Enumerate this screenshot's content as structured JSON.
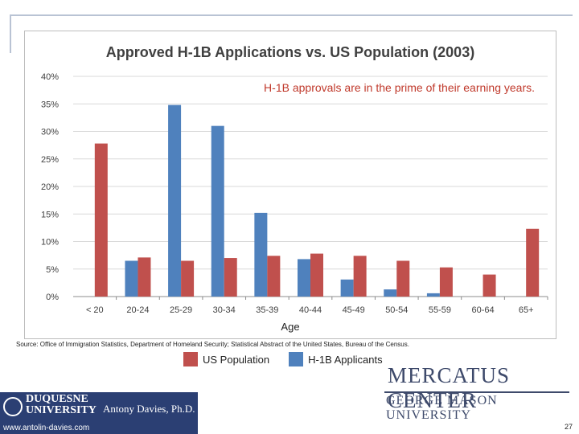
{
  "chart_data": {
    "type": "bar",
    "title": "Approved H-1B Applications vs. US Population  (2003)",
    "xlabel": "Age",
    "ylabel": "",
    "ylim": [
      0,
      40
    ],
    "ytick_labels": [
      "0%",
      "5%",
      "10%",
      "15%",
      "20%",
      "25%",
      "30%",
      "35%",
      "40%"
    ],
    "ytick_values": [
      0,
      5,
      10,
      15,
      20,
      25,
      30,
      35,
      40
    ],
    "categories": [
      "< 20",
      "20-24",
      "25-29",
      "30-34",
      "35-39",
      "40-44",
      "45-49",
      "50-54",
      "55-59",
      "60-64",
      "65+"
    ],
    "series": [
      {
        "name": "H-1B Applicants",
        "color": "#4f81bd",
        "values": [
          0,
          6.5,
          34.8,
          31,
          15.2,
          6.8,
          3.1,
          1.3,
          0.6,
          0,
          0
        ]
      },
      {
        "name": "US Population",
        "color": "#c0504d",
        "values": [
          27.8,
          7.1,
          6.5,
          7,
          7.4,
          7.8,
          7.4,
          6.5,
          5.3,
          4,
          12.3
        ]
      }
    ],
    "annotation": "H-1B approvals are in the prime of their earning years.",
    "annotation_color": "#c0392b",
    "grid": true,
    "legend_position": "bottom"
  },
  "source": "Source:  Office of Immigration Statistics, Department of Homeland Security; Statistical Abstract of the United States, Bureau of the Census.",
  "legend": [
    {
      "label": "US Population",
      "color": "#c0504d"
    },
    {
      "label": "H-1B Applicants",
      "color": "#4f81bd"
    }
  ],
  "branding": {
    "mercatus": "MERCATUS CENTER",
    "gmu": "GEORGE MASON UNIVERSITY",
    "duquesne": "DUQUESNE UNIVERSITY",
    "author": "Antony Davies, Ph.D.",
    "url": "www.antolin-davies.com"
  },
  "page_number": "27"
}
